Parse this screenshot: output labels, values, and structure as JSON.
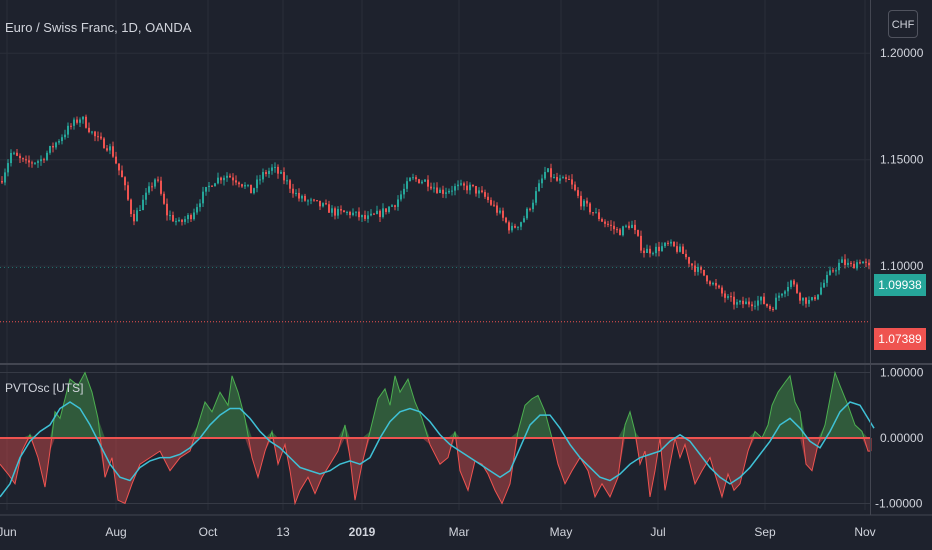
{
  "header": {
    "symbol_title": "Euro / Swiss Franc, 1D, OANDA",
    "currency_button": "CHF",
    "indicator_label": "PVTOsc [UTS]"
  },
  "price_badges": {
    "last_price": "1.09938",
    "reference_price": "1.07389"
  },
  "chart_data": [
    {
      "type": "candlestick",
      "title": "Euro / Swiss Franc, 1D, OANDA",
      "y_tick_labels": [
        "1.20000",
        "1.15000",
        "1.10000"
      ],
      "y_ticks": [
        1.2,
        1.15,
        1.1
      ],
      "ylim": [
        1.055,
        1.225
      ],
      "x_tick_labels": [
        "Jun",
        "Aug",
        "Oct",
        "13",
        "2019",
        "Mar",
        "May",
        "Jul",
        "Sep",
        "Nov"
      ],
      "grid": true,
      "close_series": [
        [
          0,
          1.14
        ],
        [
          10,
          1.153
        ],
        [
          25,
          1.148
        ],
        [
          40,
          1.15
        ],
        [
          55,
          1.158
        ],
        [
          68,
          1.165
        ],
        [
          80,
          1.17
        ],
        [
          95,
          1.16
        ],
        [
          110,
          1.155
        ],
        [
          122,
          1.14
        ],
        [
          132,
          1.122
        ],
        [
          145,
          1.133
        ],
        [
          155,
          1.142
        ],
        [
          165,
          1.125
        ],
        [
          178,
          1.12
        ],
        [
          190,
          1.124
        ],
        [
          200,
          1.132
        ],
        [
          212,
          1.14
        ],
        [
          225,
          1.143
        ],
        [
          238,
          1.14
        ],
        [
          250,
          1.135
        ],
        [
          262,
          1.143
        ],
        [
          272,
          1.146
        ],
        [
          285,
          1.14
        ],
        [
          298,
          1.132
        ],
        [
          310,
          1.13
        ],
        [
          322,
          1.128
        ],
        [
          335,
          1.125
        ],
        [
          350,
          1.125
        ],
        [
          365,
          1.122
        ],
        [
          380,
          1.125
        ],
        [
          395,
          1.13
        ],
        [
          410,
          1.141
        ],
        [
          425,
          1.14
        ],
        [
          440,
          1.135
        ],
        [
          455,
          1.137
        ],
        [
          470,
          1.137
        ],
        [
          485,
          1.132
        ],
        [
          498,
          1.125
        ],
        [
          510,
          1.117
        ],
        [
          522,
          1.122
        ],
        [
          532,
          1.131
        ],
        [
          545,
          1.145
        ],
        [
          555,
          1.14
        ],
        [
          568,
          1.14
        ],
        [
          580,
          1.13
        ],
        [
          593,
          1.125
        ],
        [
          605,
          1.12
        ],
        [
          618,
          1.116
        ],
        [
          630,
          1.12
        ],
        [
          642,
          1.107
        ],
        [
          655,
          1.108
        ],
        [
          668,
          1.11
        ],
        [
          680,
          1.107
        ],
        [
          692,
          1.1
        ],
        [
          705,
          1.095
        ],
        [
          715,
          1.09
        ],
        [
          725,
          1.085
        ],
        [
          737,
          1.082
        ],
        [
          750,
          1.083
        ],
        [
          760,
          1.084
        ],
        [
          770,
          1.08
        ],
        [
          780,
          1.088
        ],
        [
          790,
          1.093
        ],
        [
          800,
          1.085
        ],
        [
          810,
          1.083
        ],
        [
          820,
          1.09
        ],
        [
          830,
          1.097
        ],
        [
          840,
          1.102
        ],
        [
          850,
          1.1
        ],
        [
          860,
          1.103
        ],
        [
          868,
          1.099
        ]
      ],
      "last_price": 1.09938,
      "reference_price": 1.07389,
      "up_color": "#26a69a",
      "down_color": "#ef5350"
    },
    {
      "type": "area",
      "title": "PVTOsc [UTS]",
      "y_tick_labels": [
        "1.00000",
        "0.00000",
        "-1.00000"
      ],
      "y_ticks": [
        1,
        0,
        -1
      ],
      "ylim": [
        -1.1,
        1.1
      ],
      "grid": true,
      "series": [
        {
          "values": [
            [
              0,
              -0.4
            ],
            [
              8,
              -0.55
            ],
            [
              15,
              -0.7
            ],
            [
              22,
              -0.2
            ],
            [
              30,
              0.05
            ],
            [
              38,
              -0.3
            ],
            [
              45,
              -0.75
            ],
            [
              50,
              -0.2
            ],
            [
              55,
              0.4
            ],
            [
              60,
              0.3
            ],
            [
              70,
              0.9
            ],
            [
              78,
              0.8
            ],
            [
              85,
              1.0
            ],
            [
              92,
              0.7
            ],
            [
              98,
              0.3
            ],
            [
              105,
              -0.6
            ],
            [
              112,
              -0.3
            ],
            [
              118,
              -0.95
            ],
            [
              125,
              -1.0
            ],
            [
              132,
              -0.7
            ],
            [
              140,
              -0.4
            ],
            [
              150,
              -0.3
            ],
            [
              160,
              -0.2
            ],
            [
              170,
              -0.5
            ],
            [
              180,
              -0.3
            ],
            [
              190,
              -0.2
            ],
            [
              198,
              0.2
            ],
            [
              205,
              0.55
            ],
            [
              212,
              0.4
            ],
            [
              220,
              0.7
            ],
            [
              228,
              0.5
            ],
            [
              232,
              0.95
            ],
            [
              238,
              0.7
            ],
            [
              245,
              0.3
            ],
            [
              252,
              -0.3
            ],
            [
              258,
              -0.6
            ],
            [
              265,
              -0.2
            ],
            [
              272,
              0.1
            ],
            [
              278,
              -0.4
            ],
            [
              285,
              -0.1
            ],
            [
              290,
              -0.5
            ],
            [
              295,
              -1.0
            ],
            [
              300,
              -0.8
            ],
            [
              308,
              -0.6
            ],
            [
              315,
              -0.85
            ],
            [
              322,
              -0.6
            ],
            [
              330,
              -0.4
            ],
            [
              338,
              -0.2
            ],
            [
              345,
              0.2
            ],
            [
              350,
              -0.3
            ],
            [
              355,
              -0.95
            ],
            [
              362,
              -0.4
            ],
            [
              370,
              0.1
            ],
            [
              378,
              0.6
            ],
            [
              385,
              0.75
            ],
            [
              390,
              0.5
            ],
            [
              395,
              0.95
            ],
            [
              400,
              0.7
            ],
            [
              408,
              0.9
            ],
            [
              415,
              0.55
            ],
            [
              422,
              0.3
            ],
            [
              430,
              -0.1
            ],
            [
              440,
              -0.4
            ],
            [
              448,
              -0.3
            ],
            [
              455,
              0.1
            ],
            [
              460,
              -0.5
            ],
            [
              468,
              -0.8
            ],
            [
              475,
              -0.35
            ],
            [
              482,
              -0.4
            ],
            [
              488,
              -0.55
            ],
            [
              495,
              -0.8
            ],
            [
              502,
              -1.0
            ],
            [
              510,
              -0.7
            ],
            [
              518,
              0.1
            ],
            [
              525,
              0.5
            ],
            [
              532,
              0.6
            ],
            [
              538,
              0.65
            ],
            [
              545,
              0.4
            ],
            [
              552,
              0.0
            ],
            [
              558,
              -0.4
            ],
            [
              565,
              -0.7
            ],
            [
              572,
              -0.5
            ],
            [
              580,
              -0.3
            ],
            [
              588,
              -0.5
            ],
            [
              595,
              -0.9
            ],
            [
              602,
              -0.7
            ],
            [
              610,
              -0.9
            ],
            [
              618,
              -0.6
            ],
            [
              625,
              0.2
            ],
            [
              630,
              0.4
            ],
            [
              635,
              0.1
            ],
            [
              640,
              -0.4
            ],
            [
              645,
              -0.2
            ],
            [
              650,
              -0.9
            ],
            [
              655,
              -0.5
            ],
            [
              660,
              0.0
            ],
            [
              665,
              -0.8
            ],
            [
              670,
              -0.4
            ],
            [
              675,
              0.0
            ],
            [
              680,
              -0.3
            ],
            [
              685,
              -0.1
            ],
            [
              690,
              -0.4
            ],
            [
              695,
              -0.7
            ],
            [
              702,
              -0.5
            ],
            [
              710,
              -0.3
            ],
            [
              716,
              -0.6
            ],
            [
              722,
              -0.9
            ],
            [
              728,
              -0.55
            ],
            [
              734,
              -0.8
            ],
            [
              740,
              -0.7
            ],
            [
              748,
              -0.2
            ],
            [
              755,
              0.1
            ],
            [
              762,
              0.0
            ],
            [
              768,
              0.2
            ],
            [
              772,
              0.5
            ],
            [
              778,
              0.7
            ],
            [
              785,
              0.85
            ],
            [
              790,
              0.95
            ],
            [
              795,
              0.55
            ],
            [
              800,
              0.4
            ],
            [
              806,
              -0.4
            ],
            [
              812,
              -0.5
            ],
            [
              818,
              -0.1
            ],
            [
              825,
              0.2
            ],
            [
              830,
              0.6
            ],
            [
              835,
              1.0
            ],
            [
              840,
              0.8
            ],
            [
              848,
              0.5
            ],
            [
              855,
              0.2
            ],
            [
              862,
              0.1
            ],
            [
              868,
              -0.2
            ],
            [
              872,
              -0.2
            ]
          ],
          "positive_color": "#4caf50",
          "negative_color": "#ef5350"
        },
        {
          "values": [
            [
              0,
              -0.9
            ],
            [
              10,
              -0.7
            ],
            [
              20,
              -0.3
            ],
            [
              30,
              -0.05
            ],
            [
              40,
              0.1
            ],
            [
              50,
              0.2
            ],
            [
              60,
              0.45
            ],
            [
              70,
              0.55
            ],
            [
              80,
              0.45
            ],
            [
              90,
              0.2
            ],
            [
              100,
              -0.1
            ],
            [
              110,
              -0.4
            ],
            [
              120,
              -0.6
            ],
            [
              130,
              -0.65
            ],
            [
              140,
              -0.45
            ],
            [
              150,
              -0.35
            ],
            [
              160,
              -0.3
            ],
            [
              170,
              -0.3
            ],
            [
              180,
              -0.25
            ],
            [
              190,
              -0.15
            ],
            [
              200,
              0.0
            ],
            [
              210,
              0.2
            ],
            [
              220,
              0.35
            ],
            [
              230,
              0.45
            ],
            [
              240,
              0.45
            ],
            [
              250,
              0.3
            ],
            [
              260,
              0.1
            ],
            [
              270,
              -0.05
            ],
            [
              280,
              -0.15
            ],
            [
              290,
              -0.3
            ],
            [
              300,
              -0.45
            ],
            [
              310,
              -0.5
            ],
            [
              320,
              -0.55
            ],
            [
              330,
              -0.5
            ],
            [
              340,
              -0.4
            ],
            [
              350,
              -0.35
            ],
            [
              360,
              -0.4
            ],
            [
              370,
              -0.3
            ],
            [
              380,
              0.0
            ],
            [
              390,
              0.25
            ],
            [
              400,
              0.4
            ],
            [
              410,
              0.45
            ],
            [
              420,
              0.4
            ],
            [
              430,
              0.25
            ],
            [
              440,
              0.05
            ],
            [
              450,
              -0.1
            ],
            [
              460,
              -0.2
            ],
            [
              470,
              -0.3
            ],
            [
              480,
              -0.4
            ],
            [
              490,
              -0.5
            ],
            [
              500,
              -0.6
            ],
            [
              510,
              -0.5
            ],
            [
              520,
              -0.15
            ],
            [
              530,
              0.2
            ],
            [
              540,
              0.35
            ],
            [
              550,
              0.35
            ],
            [
              560,
              0.15
            ],
            [
              570,
              -0.1
            ],
            [
              580,
              -0.3
            ],
            [
              590,
              -0.45
            ],
            [
              600,
              -0.6
            ],
            [
              610,
              -0.65
            ],
            [
              620,
              -0.55
            ],
            [
              630,
              -0.4
            ],
            [
              640,
              -0.3
            ],
            [
              650,
              -0.25
            ],
            [
              660,
              -0.2
            ],
            [
              670,
              -0.05
            ],
            [
              680,
              0.05
            ],
            [
              690,
              -0.05
            ],
            [
              700,
              -0.25
            ],
            [
              710,
              -0.45
            ],
            [
              720,
              -0.6
            ],
            [
              730,
              -0.7
            ],
            [
              740,
              -0.6
            ],
            [
              750,
              -0.45
            ],
            [
              760,
              -0.25
            ],
            [
              770,
              -0.05
            ],
            [
              780,
              0.2
            ],
            [
              790,
              0.3
            ],
            [
              800,
              0.15
            ],
            [
              810,
              -0.05
            ],
            [
              820,
              -0.15
            ],
            [
              830,
              0.1
            ],
            [
              840,
              0.4
            ],
            [
              850,
              0.55
            ],
            [
              860,
              0.5
            ],
            [
              870,
              0.25
            ],
            [
              874,
              0.15
            ]
          ],
          "color": "#3fc1d6"
        }
      ]
    }
  ]
}
